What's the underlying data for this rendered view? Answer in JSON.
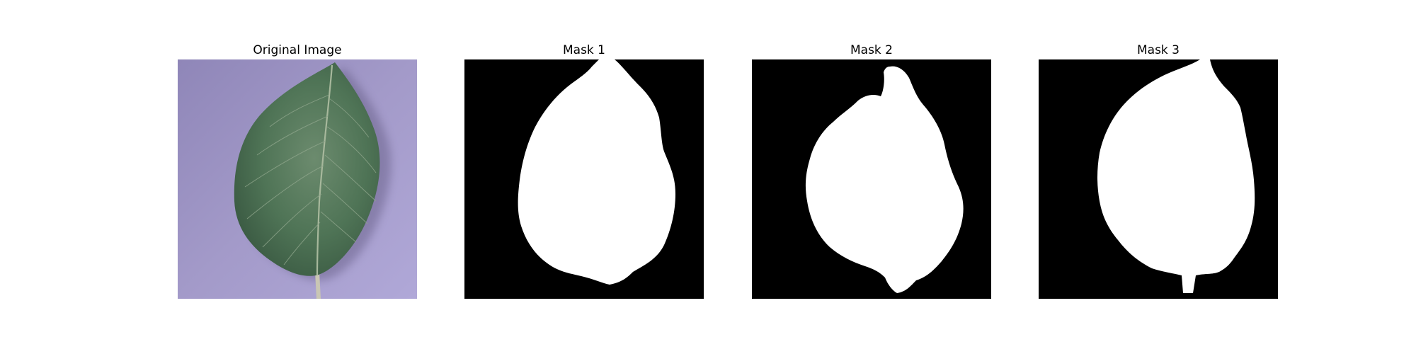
{
  "figure": {
    "panels": [
      {
        "title": "Original Image",
        "kind": "photo"
      },
      {
        "title": "Mask 1",
        "kind": "mask"
      },
      {
        "title": "Mask 2",
        "kind": "mask"
      },
      {
        "title": "Mask 3",
        "kind": "mask"
      }
    ]
  },
  "colors": {
    "background": "#ffffff",
    "mask_background": "#000000",
    "mask_foreground": "#ffffff",
    "photo_backdrop": "#9e95c4",
    "leaf_green": "#4f7456",
    "leaf_vein": "#a7b89c",
    "stem": "#c9c6b4"
  }
}
